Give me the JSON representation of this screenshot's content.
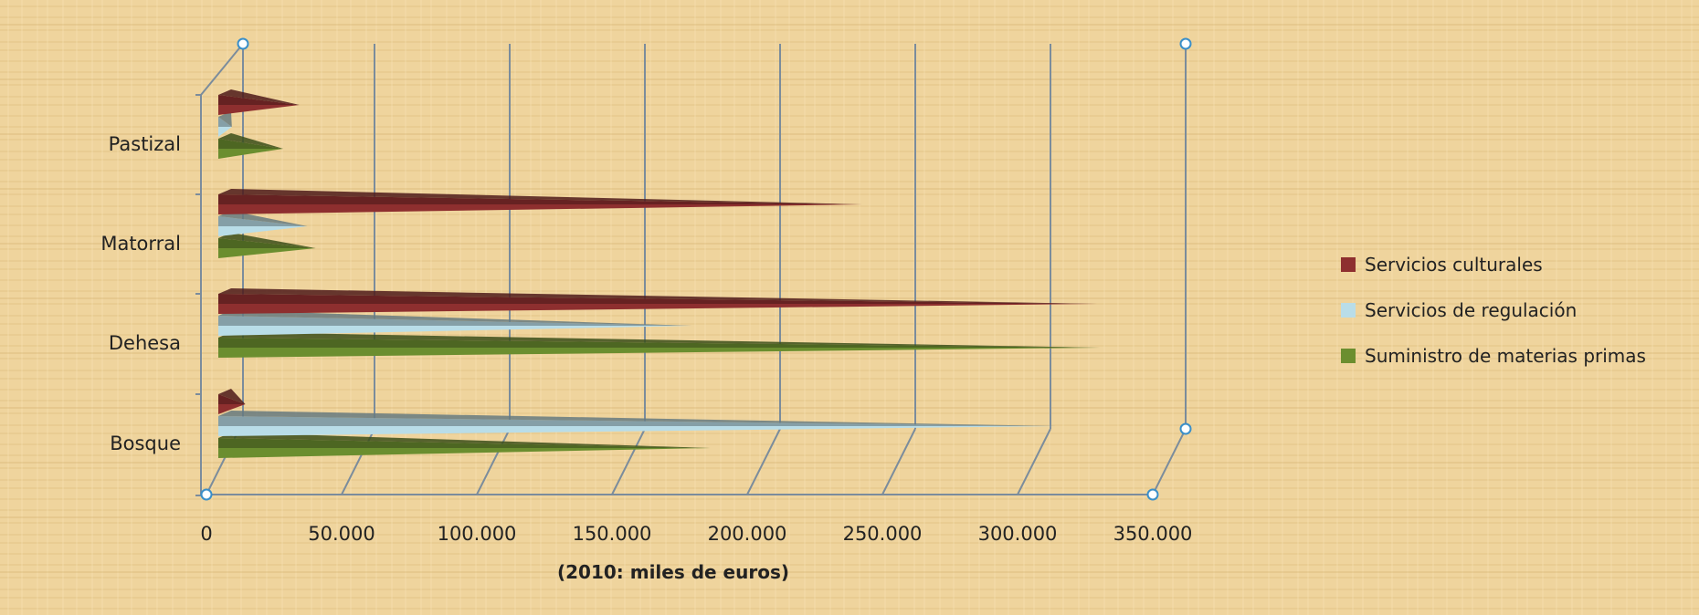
{
  "chart_data": {
    "type": "bar",
    "orientation": "horizontal",
    "style": "3d-cone",
    "categories": [
      "Bosque",
      "Dehesa",
      "Matorral",
      "Pastizal"
    ],
    "series": [
      {
        "name": "Suministro de materias primas",
        "values": [
          182000,
          326000,
          36000,
          24000
        ],
        "color": "#6b8e2f"
      },
      {
        "name": "Servicios de regulación",
        "values": [
          310000,
          175000,
          33000,
          5000
        ],
        "color": "#b9dde8"
      },
      {
        "name": "Servicios culturales",
        "values": [
          10000,
          325000,
          238000,
          30000
        ],
        "color": "#8e2f2f"
      }
    ],
    "x_ticks": [
      "0",
      "50.000",
      "100.000",
      "150.000",
      "200.000",
      "250.000",
      "300.000",
      "350.000"
    ],
    "xlim": [
      0,
      350000
    ],
    "xlabel": "(2010: miles de euros)",
    "grid": true,
    "legend_position": "right"
  },
  "colors": {
    "background": "#f0d49c",
    "grid": "#7b8c9c"
  }
}
